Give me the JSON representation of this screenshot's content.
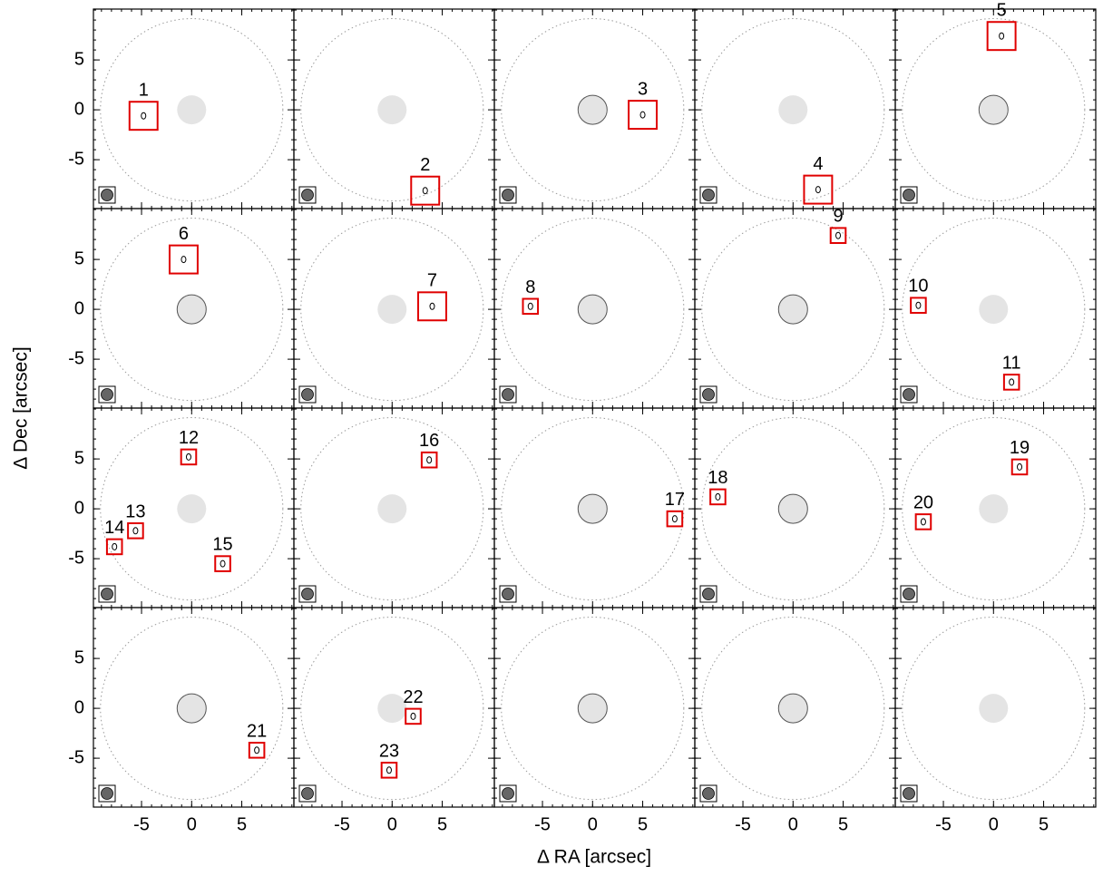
{
  "chart_data": {
    "type": "scatter",
    "xlabel": "Δ RA [arcsec]",
    "ylabel": "Δ Dec [arcsec]",
    "xlim": [
      -9.8,
      10.2
    ],
    "ylim": [
      -9.9,
      10.1
    ],
    "xticks": [
      -5,
      0,
      5
    ],
    "yticks": [
      -5,
      0,
      5
    ],
    "box_color": "#e00000",
    "panels": [
      {
        "center_outline": false,
        "sources": [
          {
            "label": "1",
            "x": -4.8,
            "y": -0.6,
            "box": 2.8
          }
        ]
      },
      {
        "center_outline": false,
        "sources": [
          {
            "label": "2",
            "x": 3.3,
            "y": -8.1,
            "box": 2.8
          }
        ]
      },
      {
        "center_outline": true,
        "sources": [
          {
            "label": "3",
            "x": 5,
            "y": -0.5,
            "box": 2.8
          }
        ]
      },
      {
        "center_outline": false,
        "sources": [
          {
            "label": "4",
            "x": 2.5,
            "y": -8,
            "box": 2.8
          }
        ]
      },
      {
        "center_outline": true,
        "sources": [
          {
            "label": "5",
            "x": 0.8,
            "y": 7.4,
            "box": 2.8
          }
        ]
      },
      {
        "center_outline": true,
        "sources": [
          {
            "label": "6",
            "x": -0.8,
            "y": 5,
            "box": 2.8
          }
        ]
      },
      {
        "center_outline": false,
        "sources": [
          {
            "label": "7",
            "x": 4,
            "y": 0.3,
            "box": 2.8
          }
        ]
      },
      {
        "center_outline": true,
        "sources": [
          {
            "label": "8",
            "x": -6.2,
            "y": 0.3,
            "box": 1.5
          }
        ]
      },
      {
        "center_outline": true,
        "sources": [
          {
            "label": "9",
            "x": 4.5,
            "y": 7.4,
            "box": 1.5
          }
        ]
      },
      {
        "center_outline": false,
        "sources": [
          {
            "label": "10",
            "x": -7.5,
            "y": 0.4,
            "box": 1.5
          },
          {
            "label": "11",
            "x": 1.8,
            "y": -7.3,
            "box": 1.5
          }
        ]
      },
      {
        "center_outline": false,
        "sources": [
          {
            "label": "12",
            "x": -0.3,
            "y": 5.2,
            "box": 1.5
          },
          {
            "label": "13",
            "x": -5.6,
            "y": -2.2,
            "box": 1.5
          },
          {
            "label": "14",
            "x": -7.7,
            "y": -3.8,
            "box": 1.5
          },
          {
            "label": "15",
            "x": 3.1,
            "y": -5.5,
            "box": 1.5
          }
        ]
      },
      {
        "center_outline": false,
        "sources": [
          {
            "label": "16",
            "x": 3.7,
            "y": 4.9,
            "box": 1.5
          }
        ]
      },
      {
        "center_outline": true,
        "sources": [
          {
            "label": "17",
            "x": 8.2,
            "y": -1,
            "box": 1.5
          }
        ]
      },
      {
        "center_outline": true,
        "sources": [
          {
            "label": "18",
            "x": -7.5,
            "y": 1.2,
            "box": 1.5
          }
        ]
      },
      {
        "center_outline": false,
        "sources": [
          {
            "label": "19",
            "x": 2.6,
            "y": 4.2,
            "box": 1.5
          },
          {
            "label": "20",
            "x": -7,
            "y": -1.3,
            "box": 1.5
          }
        ]
      },
      {
        "center_outline": true,
        "sources": [
          {
            "label": "21",
            "x": 6.5,
            "y": -4.2,
            "box": 1.5
          }
        ]
      },
      {
        "center_outline": false,
        "sources": [
          {
            "label": "22",
            "x": 2.1,
            "y": -0.8,
            "box": 1.5
          },
          {
            "label": "23",
            "x": -0.3,
            "y": -6.2,
            "box": 1.5
          }
        ]
      },
      {
        "center_outline": true,
        "sources": []
      },
      {
        "center_outline": true,
        "sources": []
      },
      {
        "center_outline": false,
        "sources": []
      }
    ]
  }
}
